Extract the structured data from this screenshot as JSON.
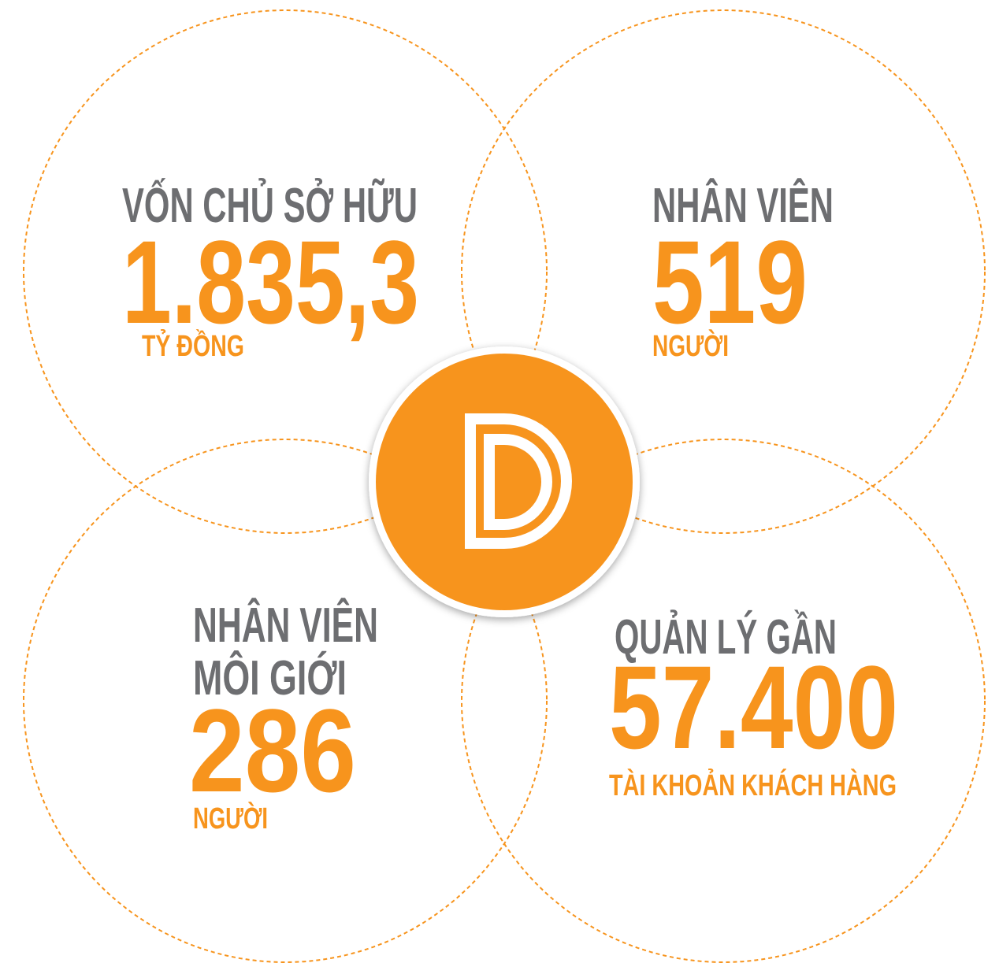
{
  "stats": [
    {
      "label_lines": [
        "VỐN CHỦ SỞ HỮU"
      ],
      "value": "1.835,3",
      "unit": "TỶ ĐỒNG"
    },
    {
      "label_lines": [
        "NHÂN VIÊN"
      ],
      "value": "519",
      "unit": "NGƯỜI"
    },
    {
      "label_lines": [
        "NHÂN VIÊN",
        "MÔI GIỚI"
      ],
      "value": "286",
      "unit": "NGƯỜI"
    },
    {
      "label_lines": [
        "QUẢN LÝ GẦN"
      ],
      "value": "57.400",
      "unit": "TÀI KHOẢN KHÁCH HÀNG"
    }
  ]
}
